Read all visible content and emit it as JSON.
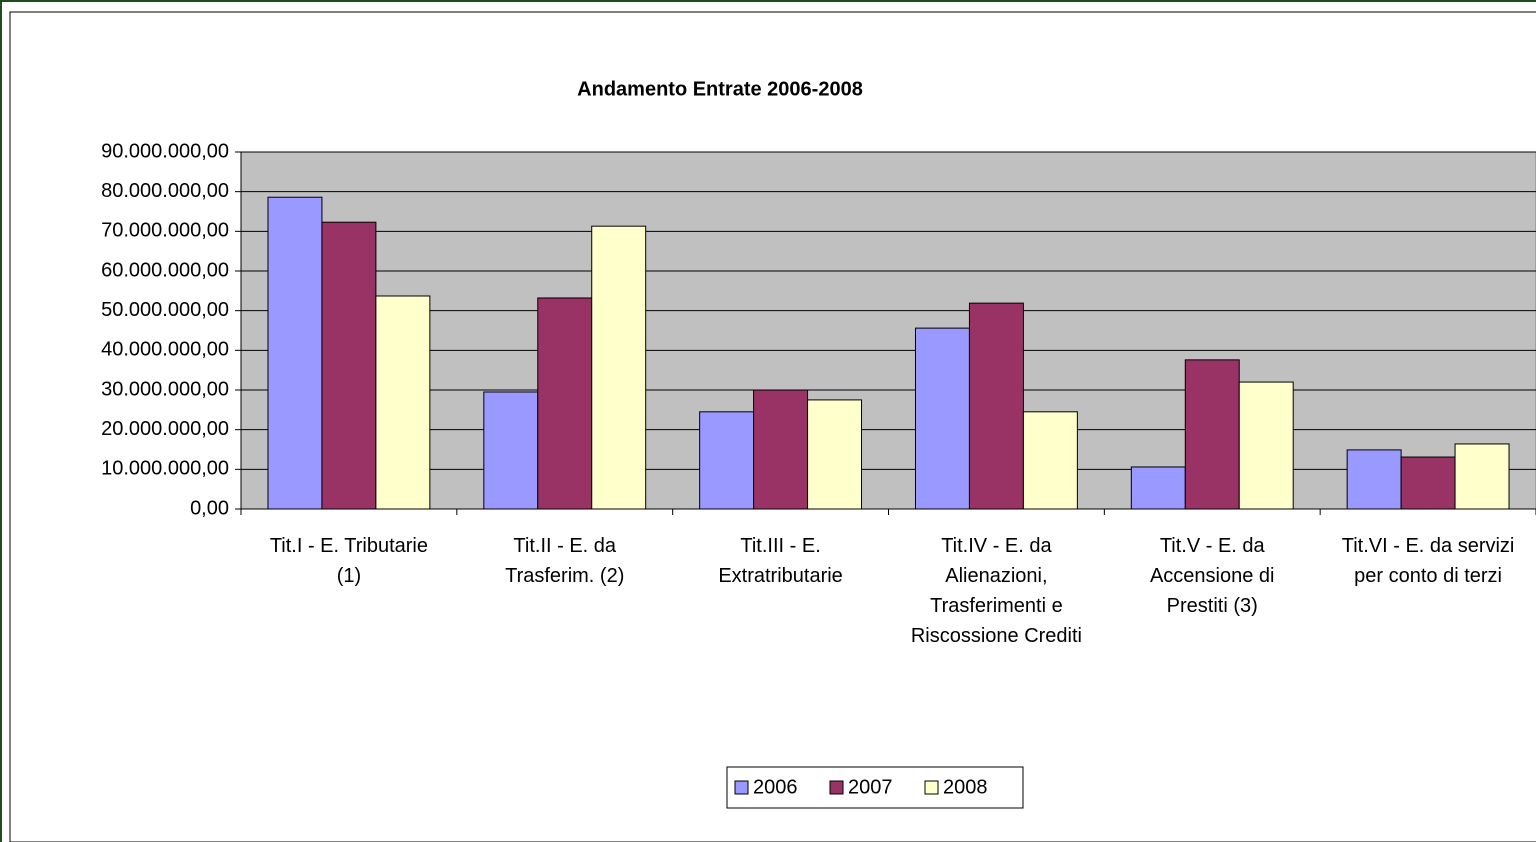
{
  "chart_data": {
    "type": "bar",
    "title": "Andamento Entrate 2006-2008",
    "categories": [
      "Tit.I   - E. Tributarie (1)",
      "Tit.II  - E. da Trasferim. (2)",
      "Tit.III - E. Extratributarie",
      "Tit.IV - E. da Alienazioni, Trasferimenti e Riscossione Crediti",
      "Tit.V - E. da Accensione di Prestiti (3)",
      "Tit.VI - E. da servizi per conto di terzi"
    ],
    "series": [
      {
        "name": "2006",
        "color": "#9999ff",
        "values": [
          78600000,
          29500000,
          24500000,
          45600000,
          10600000,
          14900000
        ]
      },
      {
        "name": "2007",
        "color": "#993366",
        "values": [
          72300000,
          53200000,
          30000000,
          51900000,
          37600000,
          13100000
        ]
      },
      {
        "name": "2008",
        "color": "#ffffcc",
        "values": [
          53700000,
          71300000,
          27500000,
          24500000,
          32000000,
          16400000
        ]
      }
    ],
    "ylim": [
      0,
      90000000
    ],
    "yticks": [
      {
        "value": 0,
        "label": "0,00"
      },
      {
        "value": 10000000,
        "label": "10.000.000,00"
      },
      {
        "value": 20000000,
        "label": "20.000.000,00"
      },
      {
        "value": 30000000,
        "label": "30.000.000,00"
      },
      {
        "value": 40000000,
        "label": "40.000.000,00"
      },
      {
        "value": 50000000,
        "label": "50.000.000,00"
      },
      {
        "value": 60000000,
        "label": "60.000.000,00"
      },
      {
        "value": 70000000,
        "label": "70.000.000,00"
      },
      {
        "value": 80000000,
        "label": "80.000.000,00"
      },
      {
        "value": 90000000,
        "label": "90.000.000,00"
      }
    ],
    "grid": true,
    "legend": "bottom"
  }
}
